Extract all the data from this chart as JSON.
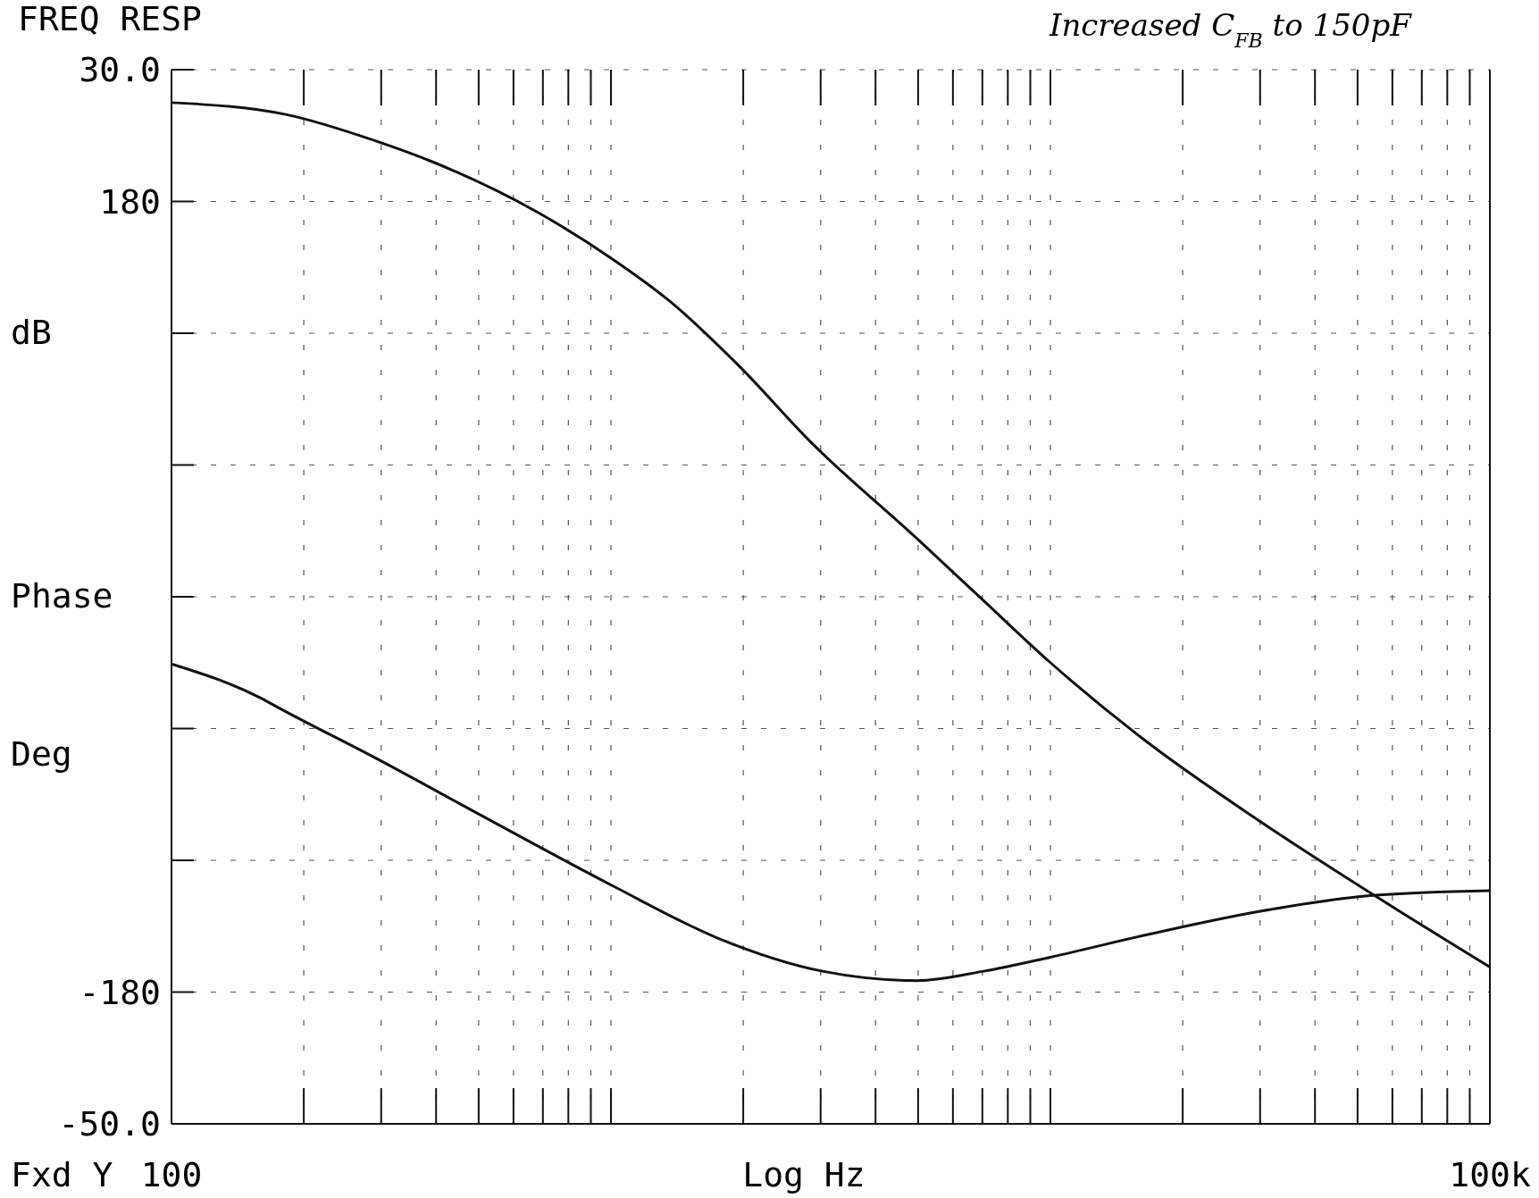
{
  "chart_data": {
    "type": "line",
    "title": "FREQ RESP",
    "xlabel": "Log Hz",
    "ylabel": "dB",
    "y2label": "Phase Deg",
    "annotations": [
      "Increased C$_{FB}$ to 150pF",
      "Fxd Y"
    ],
    "log": "x",
    "grid": true,
    "marker": "none",
    "line_style": "solid",
    "xlim": [
      100,
      100000
    ],
    "xticks": [
      {
        "value": 100,
        "label": "100"
      },
      {
        "value": 200,
        "label": null
      },
      {
        "value": 300,
        "label": null
      },
      {
        "value": 400,
        "label": null
      },
      {
        "value": 500,
        "label": null
      },
      {
        "value": 600,
        "label": null
      },
      {
        "value": 700,
        "label": null
      },
      {
        "value": 800,
        "label": null
      },
      {
        "value": 900,
        "label": null
      },
      {
        "value": 1000,
        "label": null
      },
      {
        "value": 2000,
        "label": null
      },
      {
        "value": 3000,
        "label": null
      },
      {
        "value": 4000,
        "label": null
      },
      {
        "value": 5000,
        "label": null
      },
      {
        "value": 6000,
        "label": null
      },
      {
        "value": 7000,
        "label": null
      },
      {
        "value": 8000,
        "label": null
      },
      {
        "value": 9000,
        "label": null
      },
      {
        "value": 10000,
        "label": null
      },
      {
        "value": 20000,
        "label": null
      },
      {
        "value": 30000,
        "label": null
      },
      {
        "value": 40000,
        "label": null
      },
      {
        "value": 50000,
        "label": null
      },
      {
        "value": 60000,
        "label": null
      },
      {
        "value": 70000,
        "label": null
      },
      {
        "value": 80000,
        "label": null
      },
      {
        "value": 90000,
        "label": null
      },
      {
        "value": 100000,
        "label": "100k"
      }
    ],
    "ylim": [
      -50,
      30
    ],
    "yticks": [
      {
        "value": 30,
        "label": "30.0"
      },
      {
        "value": 20,
        "label": null
      },
      {
        "value": 10,
        "label": null
      },
      {
        "value": 0,
        "label": null
      },
      {
        "value": -10,
        "label": null
      },
      {
        "value": -20,
        "label": null
      },
      {
        "value": -30,
        "label": null
      },
      {
        "value": -40,
        "label": null
      },
      {
        "value": -50,
        "label": "-50.0"
      }
    ],
    "y2lim": [
      -240,
      240
    ],
    "y2ticks": [
      180,
      -180
    ],
    "series": [
      {
        "color": "#111111",
        "axis": "y",
        "x": [
          100,
          182,
          291,
          393,
          679,
          1011,
          1365,
          1932,
          2877,
          4977,
          7047,
          10000,
          16410,
          29850,
          54200,
          100000
        ],
        "values": [
          27.5,
          26.6,
          24.6,
          23.0,
          19.2,
          15.6,
          12.4,
          7.7,
          1.6,
          -5.6,
          -10.3,
          -15.0,
          -20.9,
          -27.0,
          -32.6,
          -38.1
        ]
      },
      {
        "color": "#111111",
        "axis": "y2",
        "x": [
          100,
          160,
          177,
          291,
          504,
          1011,
          1749,
          3030,
          4977,
          7047,
          10000,
          16410,
          29850,
          54200,
          100000
        ],
        "values": [
          -30.6,
          -46.2,
          -51,
          -73.4,
          -99.3,
          -131.7,
          -155.4,
          -170.5,
          -174.8,
          -170.5,
          -164.1,
          -154.1,
          -143.3,
          -136.0,
          -133.8
        ]
      }
    ]
  }
}
